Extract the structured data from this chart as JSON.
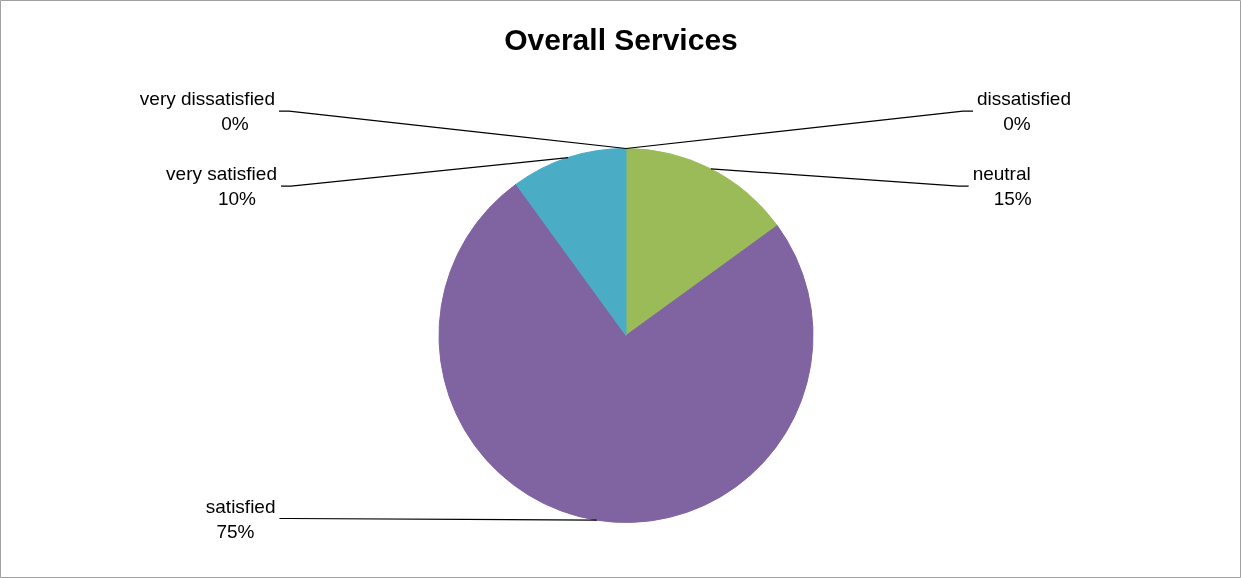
{
  "chart_data": {
    "type": "pie",
    "title": "Overall Services",
    "categories": [
      "very dissatisfied",
      "dissatisfied",
      "neutral",
      "satisfied",
      "very satisfied"
    ],
    "values": [
      0,
      0,
      15,
      75,
      10
    ],
    "colors": [
      "#4f81bd",
      "#c0504d",
      "#9bbb59",
      "#8064a2",
      "#4bacc6"
    ],
    "value_labels": [
      "0%",
      "0%",
      "15%",
      "75%",
      "10%"
    ]
  }
}
